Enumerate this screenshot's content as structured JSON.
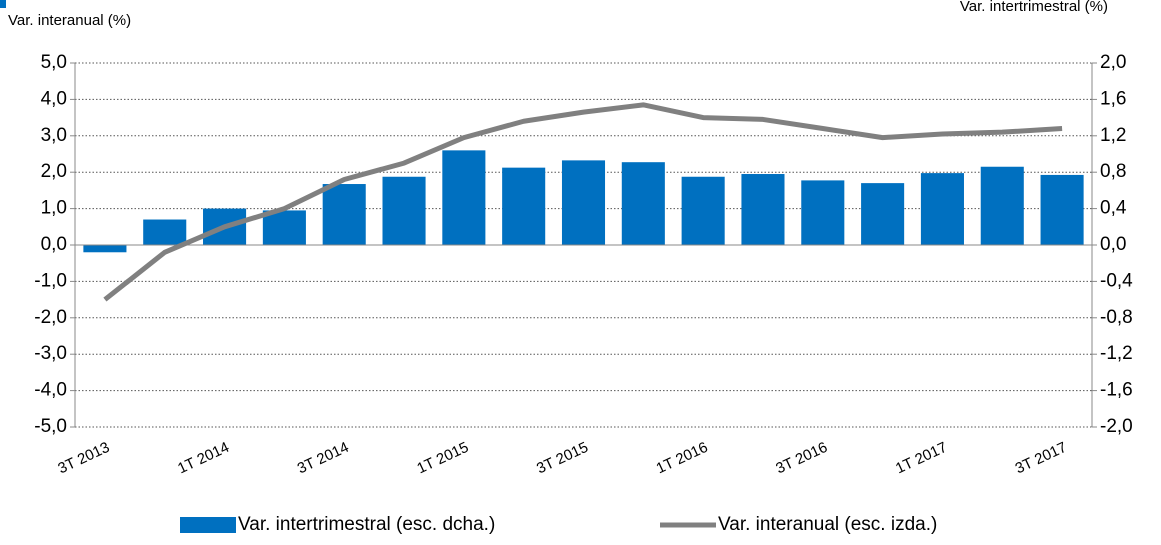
{
  "chart_data": {
    "type": "bar-line",
    "y_label": "Var. interanual (%)",
    "y2_label": "Var. intertrimestral (%)",
    "categories": [
      "3T 2013",
      null,
      "1T 2014",
      null,
      "3T 2014",
      null,
      "1T 2015",
      null,
      "3T 2015",
      null,
      "1T 2016",
      null,
      "3T 2016",
      null,
      "1T 2017",
      null,
      "3T 2017"
    ],
    "series": [
      {
        "name": "Var. intertrimestral (esc. dcha.)",
        "type": "bar",
        "axis": "y2",
        "color": "#0070c0",
        "values": [
          -0.08,
          0.28,
          0.4,
          0.38,
          0.67,
          0.75,
          1.04,
          0.85,
          0.93,
          0.91,
          0.75,
          0.78,
          0.71,
          0.68,
          0.79,
          0.86,
          0.77
        ]
      },
      {
        "name": "Var. interanual (esc. izda.)",
        "type": "line",
        "axis": "y",
        "color": "#808080",
        "values": [
          -1.5,
          -0.2,
          0.5,
          1.0,
          1.8,
          2.25,
          2.95,
          3.4,
          3.65,
          3.85,
          3.5,
          3.45,
          3.2,
          2.95,
          3.05,
          3.1,
          3.2
        ]
      }
    ],
    "ylim": [
      -5,
      5
    ],
    "yticks": [
      {
        "value": 5,
        "label": "5,0"
      },
      {
        "value": 4,
        "label": "4,0"
      },
      {
        "value": 3,
        "label": "3,0"
      },
      {
        "value": 2,
        "label": "2,0"
      },
      {
        "value": 1,
        "label": "1,0"
      },
      {
        "value": 0,
        "label": "0,0"
      },
      {
        "value": -1,
        "label": "-1,0"
      },
      {
        "value": -2,
        "label": "-2,0"
      },
      {
        "value": -3,
        "label": "-3,0"
      },
      {
        "value": -4,
        "label": "-4,0"
      },
      {
        "value": -5,
        "label": "-5,0"
      }
    ],
    "y2lim": [
      -2,
      2
    ],
    "y2ticks": [
      {
        "value": 2,
        "label": "2,0"
      },
      {
        "value": 1.6,
        "label": "1,6"
      },
      {
        "value": 1.2,
        "label": "1,2"
      },
      {
        "value": 0.8,
        "label": "0,8"
      },
      {
        "value": 0.4,
        "label": "0,4"
      },
      {
        "value": 0,
        "label": "0,0"
      },
      {
        "value": -0.4,
        "label": "-0,4"
      },
      {
        "value": -0.8,
        "label": "-0,8"
      },
      {
        "value": -1.2,
        "label": "-1,2"
      },
      {
        "value": -1.6,
        "label": "-1,6"
      },
      {
        "value": -2,
        "label": "-2,0"
      }
    ],
    "grid": true,
    "legend": "bottom"
  }
}
